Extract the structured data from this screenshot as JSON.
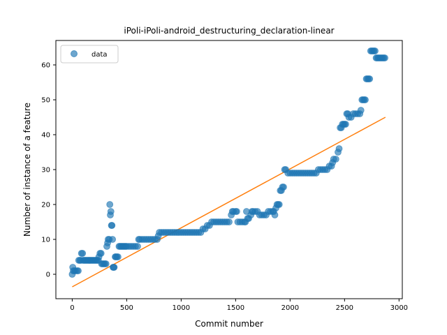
{
  "chart_data": {
    "type": "scatter",
    "title": "iPoli-iPoli-android_destructuring_declaration-linear",
    "xlabel": "Commit number",
    "ylabel": "Number of instance of a feature",
    "xlim": [
      -150,
      3030
    ],
    "ylim": [
      -7,
      67
    ],
    "xticks": [
      0,
      500,
      1000,
      1500,
      2000,
      2500,
      3000
    ],
    "yticks": [
      0,
      10,
      20,
      30,
      40,
      50,
      60
    ],
    "grid": false,
    "legend": {
      "placement": "top-left",
      "entries": [
        "data"
      ]
    },
    "colors": {
      "data": "#1f77b4",
      "fit": "#ff7f0e"
    },
    "series": [
      {
        "name": "data",
        "kind": "scatter",
        "points": [
          [
            0,
            0
          ],
          [
            5,
            2
          ],
          [
            10,
            1
          ],
          [
            20,
            1
          ],
          [
            30,
            1
          ],
          [
            45,
            1
          ],
          [
            55,
            1
          ],
          [
            60,
            4
          ],
          [
            70,
            4
          ],
          [
            80,
            4
          ],
          [
            85,
            6
          ],
          [
            95,
            6
          ],
          [
            100,
            4
          ],
          [
            110,
            4
          ],
          [
            120,
            4
          ],
          [
            130,
            4
          ],
          [
            140,
            4
          ],
          [
            150,
            4
          ],
          [
            160,
            4
          ],
          [
            170,
            4
          ],
          [
            180,
            4
          ],
          [
            190,
            4
          ],
          [
            200,
            4
          ],
          [
            210,
            4
          ],
          [
            220,
            4
          ],
          [
            230,
            4
          ],
          [
            240,
            4
          ],
          [
            245,
            5
          ],
          [
            255,
            6
          ],
          [
            265,
            6
          ],
          [
            270,
            3
          ],
          [
            280,
            3
          ],
          [
            290,
            3
          ],
          [
            300,
            3
          ],
          [
            310,
            3
          ],
          [
            318,
            8
          ],
          [
            325,
            9
          ],
          [
            330,
            10
          ],
          [
            340,
            10
          ],
          [
            345,
            20
          ],
          [
            350,
            17
          ],
          [
            355,
            18
          ],
          [
            360,
            14
          ],
          [
            365,
            14
          ],
          [
            370,
            10
          ],
          [
            375,
            2
          ],
          [
            380,
            2
          ],
          [
            385,
            2
          ],
          [
            395,
            5
          ],
          [
            400,
            5
          ],
          [
            410,
            5
          ],
          [
            420,
            5
          ],
          [
            430,
            8
          ],
          [
            440,
            8
          ],
          [
            450,
            8
          ],
          [
            460,
            8
          ],
          [
            470,
            8
          ],
          [
            480,
            8
          ],
          [
            490,
            8
          ],
          [
            500,
            8
          ],
          [
            520,
            8
          ],
          [
            540,
            8
          ],
          [
            560,
            8
          ],
          [
            580,
            8
          ],
          [
            600,
            8
          ],
          [
            610,
            10
          ],
          [
            620,
            10
          ],
          [
            640,
            10
          ],
          [
            660,
            10
          ],
          [
            680,
            10
          ],
          [
            700,
            10
          ],
          [
            720,
            10
          ],
          [
            740,
            10
          ],
          [
            760,
            10
          ],
          [
            780,
            10
          ],
          [
            790,
            11
          ],
          [
            800,
            12
          ],
          [
            820,
            12
          ],
          [
            840,
            12
          ],
          [
            860,
            12
          ],
          [
            880,
            12
          ],
          [
            900,
            12
          ],
          [
            920,
            12
          ],
          [
            940,
            12
          ],
          [
            960,
            12
          ],
          [
            980,
            12
          ],
          [
            1000,
            12
          ],
          [
            1020,
            12
          ],
          [
            1040,
            12
          ],
          [
            1060,
            12
          ],
          [
            1080,
            12
          ],
          [
            1100,
            12
          ],
          [
            1120,
            12
          ],
          [
            1140,
            12
          ],
          [
            1160,
            12
          ],
          [
            1180,
            12
          ],
          [
            1200,
            13
          ],
          [
            1220,
            13
          ],
          [
            1240,
            14
          ],
          [
            1260,
            14
          ],
          [
            1280,
            15
          ],
          [
            1300,
            15
          ],
          [
            1320,
            15
          ],
          [
            1340,
            15
          ],
          [
            1360,
            15
          ],
          [
            1380,
            15
          ],
          [
            1400,
            15
          ],
          [
            1420,
            15
          ],
          [
            1440,
            15
          ],
          [
            1460,
            17
          ],
          [
            1470,
            18
          ],
          [
            1480,
            18
          ],
          [
            1500,
            18
          ],
          [
            1510,
            18
          ],
          [
            1520,
            15
          ],
          [
            1540,
            15
          ],
          [
            1560,
            15
          ],
          [
            1580,
            15
          ],
          [
            1590,
            15
          ],
          [
            1600,
            18
          ],
          [
            1610,
            16
          ],
          [
            1620,
            16
          ],
          [
            1640,
            17
          ],
          [
            1650,
            18
          ],
          [
            1660,
            18
          ],
          [
            1680,
            18
          ],
          [
            1700,
            18
          ],
          [
            1720,
            17
          ],
          [
            1740,
            17
          ],
          [
            1760,
            17
          ],
          [
            1780,
            17
          ],
          [
            1800,
            18
          ],
          [
            1820,
            18
          ],
          [
            1840,
            18
          ],
          [
            1850,
            18
          ],
          [
            1860,
            17
          ],
          [
            1870,
            19
          ],
          [
            1880,
            20
          ],
          [
            1890,
            20
          ],
          [
            1900,
            20
          ],
          [
            1910,
            24
          ],
          [
            1920,
            24
          ],
          [
            1930,
            25
          ],
          [
            1940,
            25
          ],
          [
            1950,
            30
          ],
          [
            1960,
            30
          ],
          [
            1980,
            29
          ],
          [
            2000,
            29
          ],
          [
            2020,
            29
          ],
          [
            2040,
            29
          ],
          [
            2060,
            29
          ],
          [
            2080,
            29
          ],
          [
            2100,
            29
          ],
          [
            2120,
            29
          ],
          [
            2140,
            29
          ],
          [
            2160,
            29
          ],
          [
            2180,
            29
          ],
          [
            2200,
            29
          ],
          [
            2220,
            29
          ],
          [
            2240,
            29
          ],
          [
            2260,
            30
          ],
          [
            2280,
            30
          ],
          [
            2300,
            30
          ],
          [
            2320,
            30
          ],
          [
            2340,
            30
          ],
          [
            2360,
            31
          ],
          [
            2380,
            31
          ],
          [
            2390,
            32
          ],
          [
            2400,
            33
          ],
          [
            2420,
            33
          ],
          [
            2440,
            35
          ],
          [
            2450,
            36
          ],
          [
            2460,
            42
          ],
          [
            2470,
            42
          ],
          [
            2480,
            43
          ],
          [
            2490,
            43
          ],
          [
            2500,
            43
          ],
          [
            2510,
            43
          ],
          [
            2520,
            46
          ],
          [
            2530,
            46
          ],
          [
            2540,
            45
          ],
          [
            2560,
            45
          ],
          [
            2580,
            46
          ],
          [
            2600,
            46
          ],
          [
            2620,
            46
          ],
          [
            2640,
            46
          ],
          [
            2650,
            47
          ],
          [
            2660,
            50
          ],
          [
            2670,
            50
          ],
          [
            2680,
            50
          ],
          [
            2690,
            50
          ],
          [
            2700,
            56
          ],
          [
            2710,
            56
          ],
          [
            2720,
            56
          ],
          [
            2730,
            56
          ],
          [
            2740,
            64
          ],
          [
            2750,
            64
          ],
          [
            2760,
            64
          ],
          [
            2770,
            64
          ],
          [
            2780,
            64
          ],
          [
            2790,
            62
          ],
          [
            2800,
            62
          ],
          [
            2810,
            62
          ],
          [
            2820,
            62
          ],
          [
            2830,
            62
          ],
          [
            2840,
            62
          ],
          [
            2850,
            62
          ],
          [
            2860,
            62
          ],
          [
            2870,
            62
          ]
        ]
      },
      {
        "name": "",
        "kind": "line",
        "points": [
          [
            0,
            -3.6
          ],
          [
            2875,
            45.0
          ]
        ]
      }
    ]
  }
}
